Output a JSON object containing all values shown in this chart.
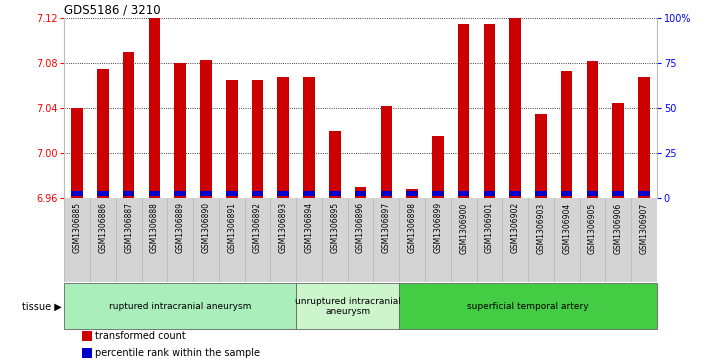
{
  "title": "GDS5186 / 3210",
  "samples": [
    "GSM1306885",
    "GSM1306886",
    "GSM1306887",
    "GSM1306888",
    "GSM1306889",
    "GSM1306890",
    "GSM1306891",
    "GSM1306892",
    "GSM1306893",
    "GSM1306894",
    "GSM1306895",
    "GSM1306896",
    "GSM1306897",
    "GSM1306898",
    "GSM1306899",
    "GSM1306900",
    "GSM1306901",
    "GSM1306902",
    "GSM1306903",
    "GSM1306904",
    "GSM1306905",
    "GSM1306906",
    "GSM1306907"
  ],
  "transformed_count": [
    7.04,
    7.075,
    7.09,
    7.12,
    7.08,
    7.083,
    7.065,
    7.065,
    7.068,
    7.068,
    7.02,
    6.97,
    7.042,
    6.968,
    7.015,
    7.115,
    7.115,
    7.12,
    7.035,
    7.073,
    7.082,
    7.045,
    7.068
  ],
  "ylim": [
    6.96,
    7.12
  ],
  "right_ylim": [
    0,
    100
  ],
  "right_yticks": [
    0,
    25,
    50,
    75,
    100
  ],
  "right_yticklabels": [
    "0",
    "25",
    "50",
    "75",
    "100%"
  ],
  "left_yticks": [
    6.96,
    7.0,
    7.04,
    7.08,
    7.12
  ],
  "bar_color": "#cc0000",
  "blue_color": "#0000cc",
  "base_value": 6.96,
  "blue_bar_height": 0.004,
  "blue_bar_bottom": 6.962,
  "bar_width": 0.45,
  "groups": [
    {
      "label": "ruptured intracranial aneurysm",
      "start": 0,
      "end": 9,
      "color": "#aaeebb"
    },
    {
      "label": "unruptured intracranial\naneurysm",
      "start": 9,
      "end": 13,
      "color": "#ccf5cc"
    },
    {
      "label": "superficial temporal artery",
      "start": 13,
      "end": 23,
      "color": "#44cc44"
    }
  ],
  "legend_items": [
    {
      "color": "#cc0000",
      "label": "transformed count"
    },
    {
      "color": "#0000cc",
      "label": "percentile rank within the sample"
    }
  ],
  "xticklabel_bg": "#d0d0d0",
  "grid_color": "black",
  "grid_linestyle": "dotted"
}
